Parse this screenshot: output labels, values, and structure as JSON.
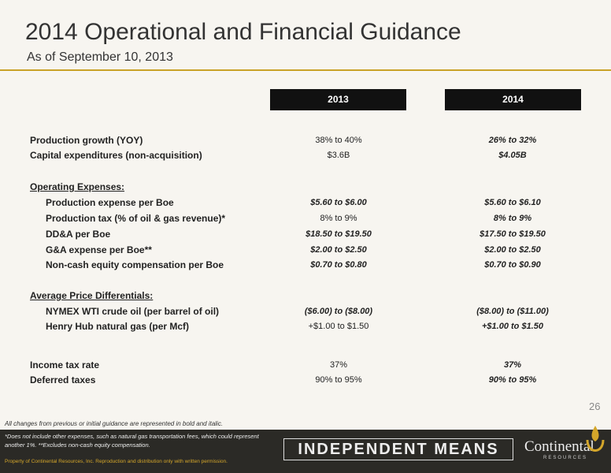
{
  "header": {
    "title": "2014 Operational and Financial Guidance",
    "subtitle": "As of September 10, 2013"
  },
  "table": {
    "columns": [
      "2013",
      "2014"
    ],
    "rows": [
      {
        "label": "Production growth (YOY)",
        "values": [
          "38% to 40%",
          "26% to 32%"
        ]
      },
      {
        "label": "Capital expenditures (non-acquisition)",
        "values": [
          "$3.6B",
          "$4.05B"
        ]
      },
      {
        "label": "Operating Expenses:"
      },
      {
        "label": "Production expense per Boe",
        "values": [
          "$5.60 to $6.00",
          "$5.60 to $6.10"
        ]
      },
      {
        "label": "Production tax (% of oil & gas revenue)*",
        "values": [
          "8% to 9%",
          "8% to 9%"
        ]
      },
      {
        "label": "DD&A per Boe",
        "values": [
          "$18.50 to $19.50",
          "$17.50 to $19.50"
        ]
      },
      {
        "label": "G&A expense per Boe**",
        "values": [
          "$2.00 to $2.50",
          "$2.00 to $2.50"
        ]
      },
      {
        "label": "Non-cash equity compensation per Boe",
        "values": [
          "$0.70 to $0.80",
          "$0.70 to $0.90"
        ]
      },
      {
        "label": "Average Price Differentials:"
      },
      {
        "label": "NYMEX WTI crude oil (per barrel of oil)",
        "values": [
          "($6.00) to ($8.00)",
          "($8.00) to ($11.00)"
        ]
      },
      {
        "label": "Henry Hub natural gas (per Mcf)",
        "values": [
          "+$1.00 to $1.50",
          "+$1.00 to $1.50"
        ]
      },
      {
        "label": "Income tax rate",
        "values": [
          "37%",
          "37%"
        ]
      },
      {
        "label": "Deferred taxes",
        "values": [
          "90% to 95%",
          "90% to 95%"
        ]
      }
    ]
  },
  "footer": {
    "page_number": "26",
    "notes": [
      "All changes from previous or initial guidance are represented in bold and italic.",
      "*Does not include other expenses, such as natural gas transportation fees, which could represent another 1%. **Excludes non-cash equity compensation."
    ],
    "banner": "INDEPENDENT MEANS",
    "logo": "Continental",
    "logo_sub": "RESOURCES",
    "copyright": "Property of Continental Resources, Inc. Reproduction and distribution only with written permission."
  }
}
